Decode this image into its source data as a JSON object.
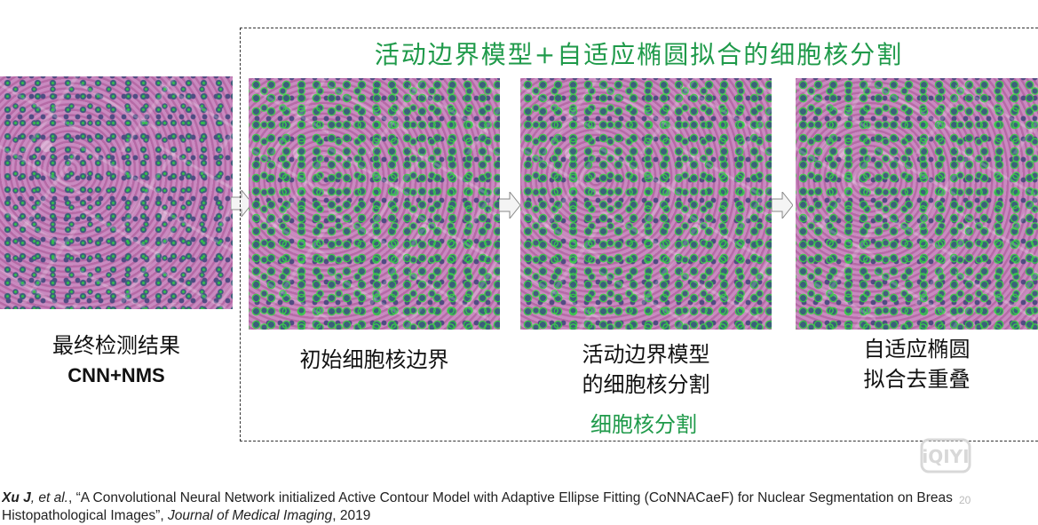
{
  "title": "活动边界模型+自适应椭圆拟合的细胞核分割",
  "left_caption": {
    "line1": "最终检测结果",
    "line2": "CNN+NMS"
  },
  "panels": [
    {
      "caption_lines": [
        "初始细胞核边界"
      ]
    },
    {
      "caption_lines": [
        "活动边界模型",
        "的细胞核分割"
      ]
    },
    {
      "caption_lines": [
        "自适应椭圆",
        "拟合去重叠"
      ]
    }
  ],
  "group_caption": "细胞核分割",
  "citation": {
    "authors": "Xu J",
    "etal": ", et al.",
    "title_text": ", “A Convolutional Neural Network initialized Active Contour Model with Adaptive Ellipse Fitting (CoNNACaeF) for Nuclear Segmentation on Breas",
    "line2_prefix": "Histopathological Images”, ",
    "journal": "Journal of Medical Imaging",
    "year": ", 2019"
  },
  "page_number": "20",
  "watermark": "iQIYI",
  "colors": {
    "accent_green": "#1f9a4a",
    "contour_green": "#2ed63a",
    "tissue_pink": "#b86fae",
    "nucleus_blue": "#355f78"
  }
}
